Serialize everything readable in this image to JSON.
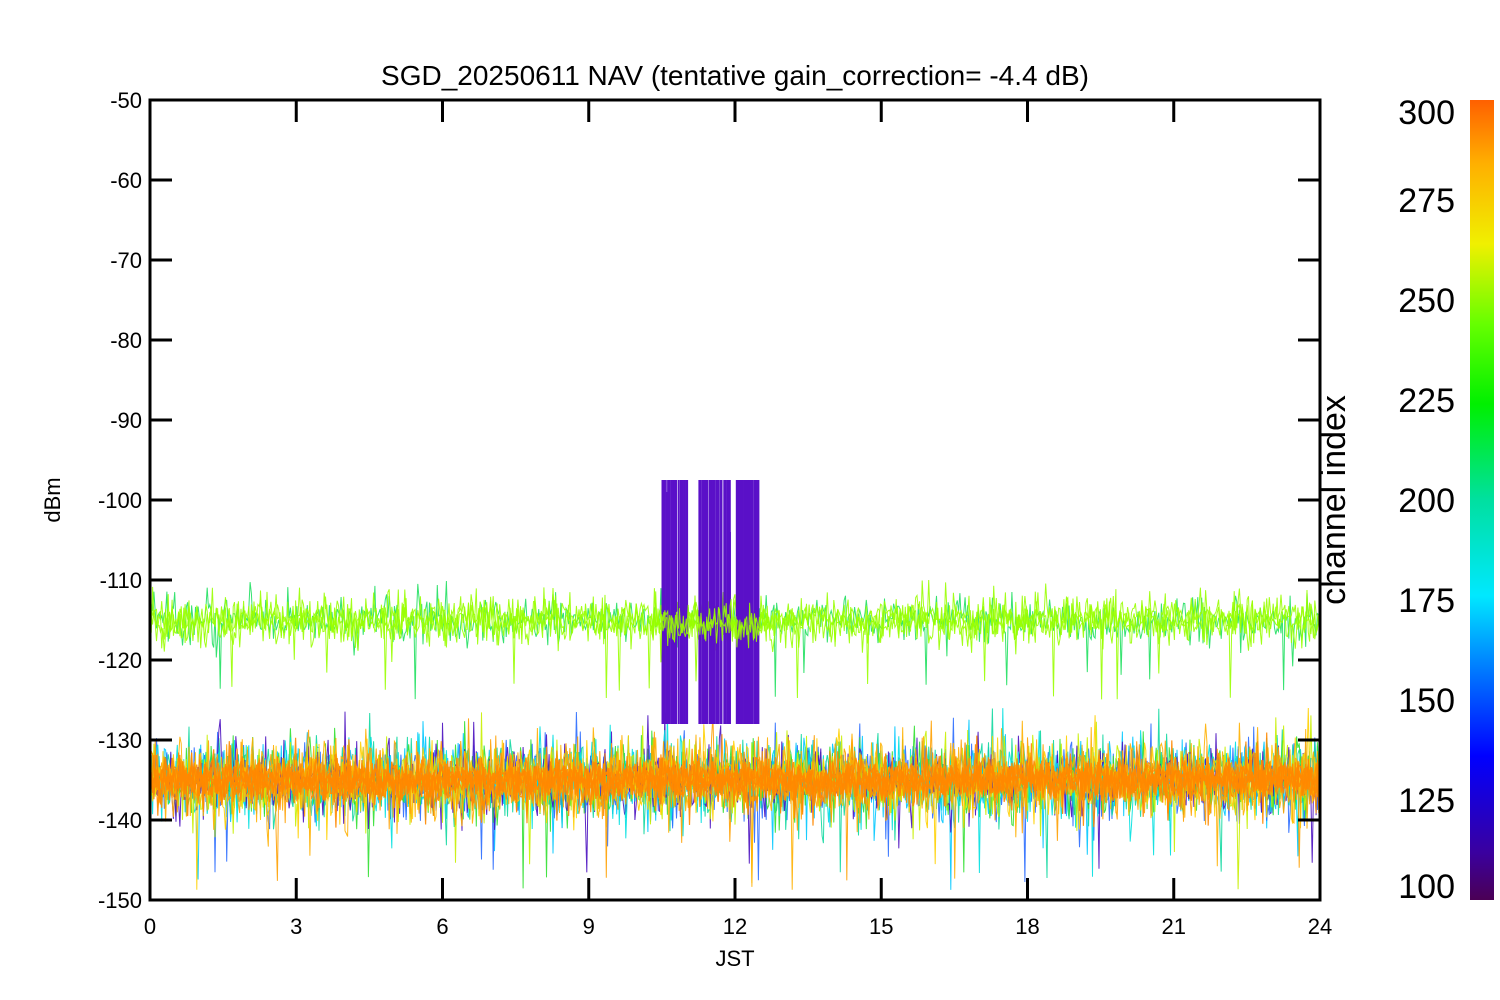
{
  "chart_data": {
    "type": "line",
    "title": "SGD_20250611 NAV (tentative gain_correction= -4.4 dB)",
    "xlabel": "JST",
    "ylabel": "dBm",
    "xlim": [
      0,
      24
    ],
    "ylim": [
      -150,
      -50
    ],
    "x_ticks": [
      "0",
      "3",
      "6",
      "9",
      "12",
      "15",
      "18",
      "21",
      "24"
    ],
    "y_ticks": [
      "-50",
      "-60",
      "-70",
      "-80",
      "-90",
      "-100",
      "-110",
      "-120",
      "-130",
      "-140",
      "-150"
    ],
    "colorbar": {
      "label": "channel index",
      "range": [
        100,
        300
      ],
      "ticks": [
        "300",
        "275",
        "250",
        "225",
        "200",
        "175",
        "150",
        "125",
        "100"
      ],
      "colormap": "rainbow"
    },
    "series": [
      {
        "channel_range": [
          100,
          300
        ],
        "x_range": [
          0,
          24
        ],
        "y_center": -135,
        "y_spread": [
          -141,
          -129
        ],
        "y_outliers": [
          -149,
          -126
        ],
        "color": "#ff8800"
      },
      {
        "channel_range": [
          245,
          255
        ],
        "x_range": [
          0,
          24
        ],
        "y_center": -115,
        "y_spread": [
          -119,
          -112
        ],
        "y_outliers": [
          -125,
          -110
        ],
        "color": "#99ff00"
      },
      {
        "channel_range": [
          100,
          110
        ],
        "x_range": [
          10.5,
          12.5
        ],
        "y_center": -124,
        "y_spread": [
          -128,
          -105
        ],
        "y_outliers": [
          -128,
          -97.5
        ],
        "color": "#5a10c8"
      }
    ]
  }
}
